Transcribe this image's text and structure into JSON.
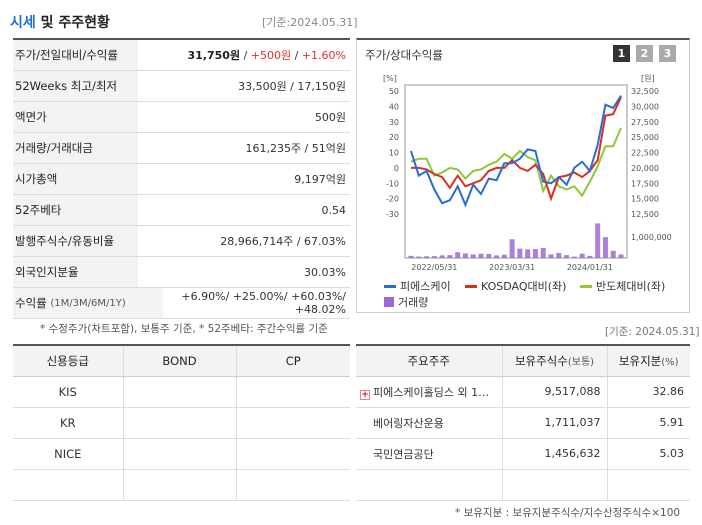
{
  "header": {
    "title_accent": "시세",
    "title_rest": " 및 주주현황",
    "date": "[기준:2024.05.31]"
  },
  "info": {
    "rows": [
      {
        "label": "주가/전일대비/수익률",
        "price": "31,750원",
        "sep1": " / ",
        "change": "+500원",
        "sep2": " / ",
        "rate": "+1.60%"
      },
      {
        "label": "52Weeks 최고/최저",
        "value": "33,500원 / 17,150원"
      },
      {
        "label": "액면가",
        "value": "500원"
      },
      {
        "label": "거래량/거래대금",
        "value": "161,235주 / 51억원"
      },
      {
        "label": "시가총액",
        "value": "9,197억원"
      },
      {
        "label": "52주베타",
        "value": "0.54"
      },
      {
        "label": "발행주식수/유동비율",
        "value": "28,966,714주 / 67.03%"
      },
      {
        "label": "외국인지분율",
        "value": "30.03%"
      }
    ],
    "returns": {
      "label": "수익률",
      "sub": "(1M/3M/6M/1Y)",
      "value": "+6.90%/ +25.00%/ +60.03%/ +48.02%"
    }
  },
  "note1": "* 수정주가(차트포함), 보통주 기준, * 52주베타: 주간수익률 기준",
  "chart": {
    "title": "주가/상대수익률",
    "pages": [
      "1",
      "2",
      "3"
    ],
    "left_unit": "[%]",
    "right_unit": "[원]",
    "left_ticks": [
      "50",
      "40",
      "30",
      "20",
      "10",
      "0",
      "-10",
      "-20",
      "-30"
    ],
    "right_ticks": [
      "32,500",
      "30,000",
      "27,500",
      "25,000",
      "22,500",
      "20,000",
      "17,500",
      "15,000",
      "12,500"
    ],
    "volume_tick": "1,000,000",
    "x_ticks": [
      "2022/05/31",
      "2023/03/31",
      "2024/01/31"
    ],
    "legend": [
      "피에스케이",
      "KOSDAQ대비(좌)",
      "반도체대비(좌)",
      "거래량"
    ],
    "colors": {
      "stock": "#2a6ad6",
      "kosdaq": "#d8301e",
      "semi": "#8fc63a",
      "volume": "#9b6ad1"
    }
  },
  "chart_data": {
    "type": "line",
    "x_ticks": [
      "2022/05/31",
      "2023/03/31",
      "2024/01/31"
    ],
    "series": [
      {
        "name": "피에스케이",
        "values": [
          11,
          -5,
          -2,
          -14,
          -23,
          -21,
          -12,
          -24,
          -11,
          -17,
          -7,
          -8,
          3,
          3,
          6,
          12,
          11,
          -9,
          -10,
          -6,
          -11,
          0,
          4,
          -2,
          15,
          41,
          39,
          47
        ]
      },
      {
        "name": "KOSDAQ대비(좌)",
        "values": [
          0,
          0,
          -1,
          -4,
          -6,
          -13,
          -5,
          -12,
          -10,
          -8,
          -2,
          0,
          0,
          5,
          0,
          -2,
          2,
          -4,
          -20,
          -6,
          -5,
          -3,
          -6,
          -2,
          5,
          34,
          35,
          46
        ]
      },
      {
        "name": "반도체대비(좌)",
        "values": [
          4,
          6,
          6,
          -5,
          -3,
          0,
          -1,
          -7,
          -2,
          -1,
          2,
          4,
          9,
          6,
          11,
          7,
          5,
          -15,
          -5,
          -12,
          -14,
          -12,
          -18,
          -9,
          1,
          14,
          14,
          26
        ]
      },
      {
        "name": "거래량",
        "values": [
          150000,
          100000,
          120000,
          130000,
          180000,
          200000,
          400000,
          320000,
          250000,
          300000,
          280000,
          180000,
          230000,
          1300000,
          650000,
          600000,
          620000,
          700000,
          250000,
          350000,
          200000,
          100000,
          300000,
          150000,
          2400000,
          1450000,
          500000,
          250000
        ]
      }
    ],
    "ylim_left": [
      -30,
      50
    ],
    "ylim_right": [
      12500,
      32500
    ]
  },
  "date2": "[기준: 2024.05.31]",
  "credit": {
    "headers": [
      "신용등급",
      "BOND",
      "CP"
    ],
    "rows": [
      [
        "KIS",
        "",
        ""
      ],
      [
        "KR",
        "",
        ""
      ],
      [
        "NICE",
        "",
        ""
      ],
      [
        "",
        "",
        ""
      ]
    ]
  },
  "holders": {
    "headers": [
      "주요주주",
      "보유주식수",
      "(보통)",
      "보유지분",
      "(%)"
    ],
    "rows": [
      {
        "name": "피에스케이홀딩스 외 1…",
        "shares": "9,517,088",
        "pct": "32.86"
      },
      {
        "name": "베어링자산운용",
        "shares": "1,711,037",
        "pct": "5.91"
      },
      {
        "name": "국민연금공단",
        "shares": "1,456,632",
        "pct": "5.03"
      },
      {
        "name": "",
        "shares": "",
        "pct": ""
      }
    ]
  },
  "note2": "* 보유지분 : 보유지분주식수/지수산정주식수×100"
}
